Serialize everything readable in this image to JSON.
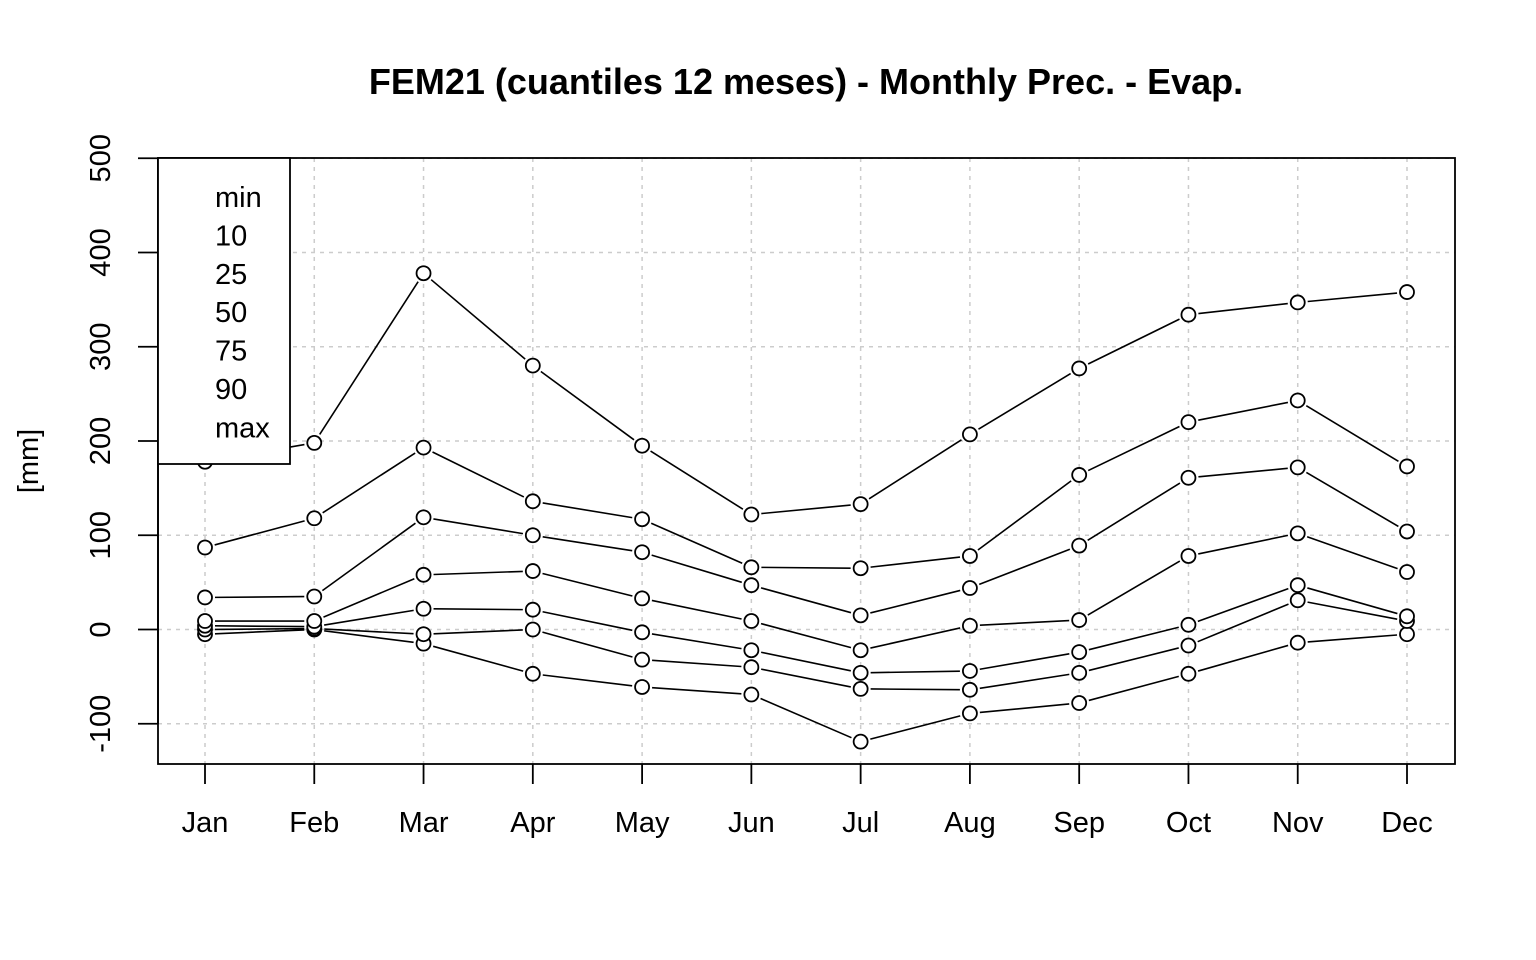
{
  "chart_data": {
    "type": "line",
    "title": "FEM21 (cuantiles 12 meses) - Monthly Prec. - Evap.",
    "xlabel": "",
    "ylabel": "[mm]",
    "categories": [
      "Jan",
      "Feb",
      "Mar",
      "Apr",
      "May",
      "Jun",
      "Jul",
      "Aug",
      "Sep",
      "Oct",
      "Nov",
      "Dec"
    ],
    "ylim": [
      -100,
      500
    ],
    "yticks": [
      -100,
      0,
      100,
      200,
      300,
      400,
      500
    ],
    "ytick_labels": [
      "-100",
      "0",
      "100",
      "200",
      "300",
      "400",
      "500"
    ],
    "grid": true,
    "legend_position": "top-left",
    "series": [
      {
        "name": "min",
        "values": [
          -5,
          0,
          -15,
          -47,
          -61,
          -69,
          -119,
          -89,
          -78,
          -47,
          -14,
          -5
        ]
      },
      {
        "name": "10",
        "values": [
          0,
          1,
          -5,
          0,
          -32,
          -40,
          -63,
          -64,
          -46,
          -17,
          31,
          9
        ]
      },
      {
        "name": "25",
        "values": [
          4,
          3,
          22,
          21,
          -3,
          -22,
          -46,
          -44,
          -24,
          5,
          47,
          14
        ]
      },
      {
        "name": "50",
        "values": [
          9,
          9,
          58,
          62,
          33,
          9,
          -22,
          4,
          10,
          78,
          102,
          61
        ]
      },
      {
        "name": "75",
        "values": [
          34,
          35,
          119,
          100,
          82,
          47,
          15,
          44,
          89,
          161,
          172,
          104
        ]
      },
      {
        "name": "90",
        "values": [
          87,
          118,
          193,
          136,
          117,
          66,
          65,
          78,
          164,
          220,
          243,
          173
        ]
      },
      {
        "name": "max",
        "values": [
          178,
          198,
          378,
          280,
          195,
          122,
          133,
          207,
          277,
          334,
          347,
          358
        ]
      }
    ]
  }
}
